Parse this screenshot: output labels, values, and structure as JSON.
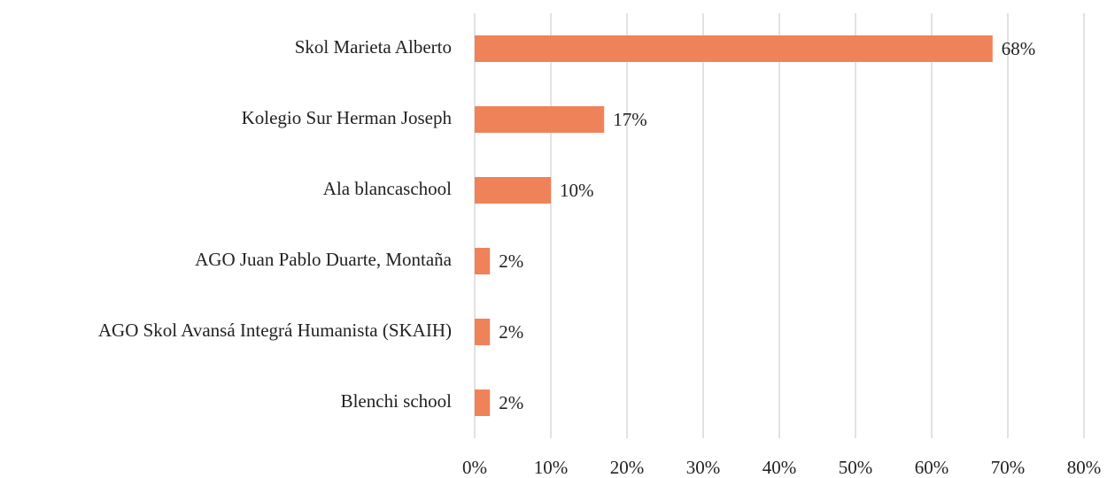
{
  "chart_data": {
    "type": "bar",
    "orientation": "horizontal",
    "categories": [
      "Skol Marieta Alberto",
      "Kolegio Sur Herman Joseph",
      "Ala blancaschool",
      "AGO Juan Pablo Duarte, Montaña",
      "AGO Skol Avansá Integrá Humanista (SKAIH)",
      "Blenchi school"
    ],
    "values": [
      68,
      17,
      10,
      2,
      2,
      2
    ],
    "value_labels": [
      "68%",
      "17%",
      "10%",
      "2%",
      "2%",
      "2%"
    ],
    "color": "#f0825a",
    "xlim": [
      0,
      80
    ],
    "xticks": [
      {
        "value": 0,
        "label": "0%"
      },
      {
        "value": 10,
        "label": "10%"
      },
      {
        "value": 20,
        "label": "20%"
      },
      {
        "value": 30,
        "label": "30%"
      },
      {
        "value": 40,
        "label": "40%"
      },
      {
        "value": 50,
        "label": "50%"
      },
      {
        "value": 60,
        "label": "60%"
      },
      {
        "value": 70,
        "label": "70%"
      },
      {
        "value": 80,
        "label": "80%"
      }
    ],
    "grid": true
  }
}
